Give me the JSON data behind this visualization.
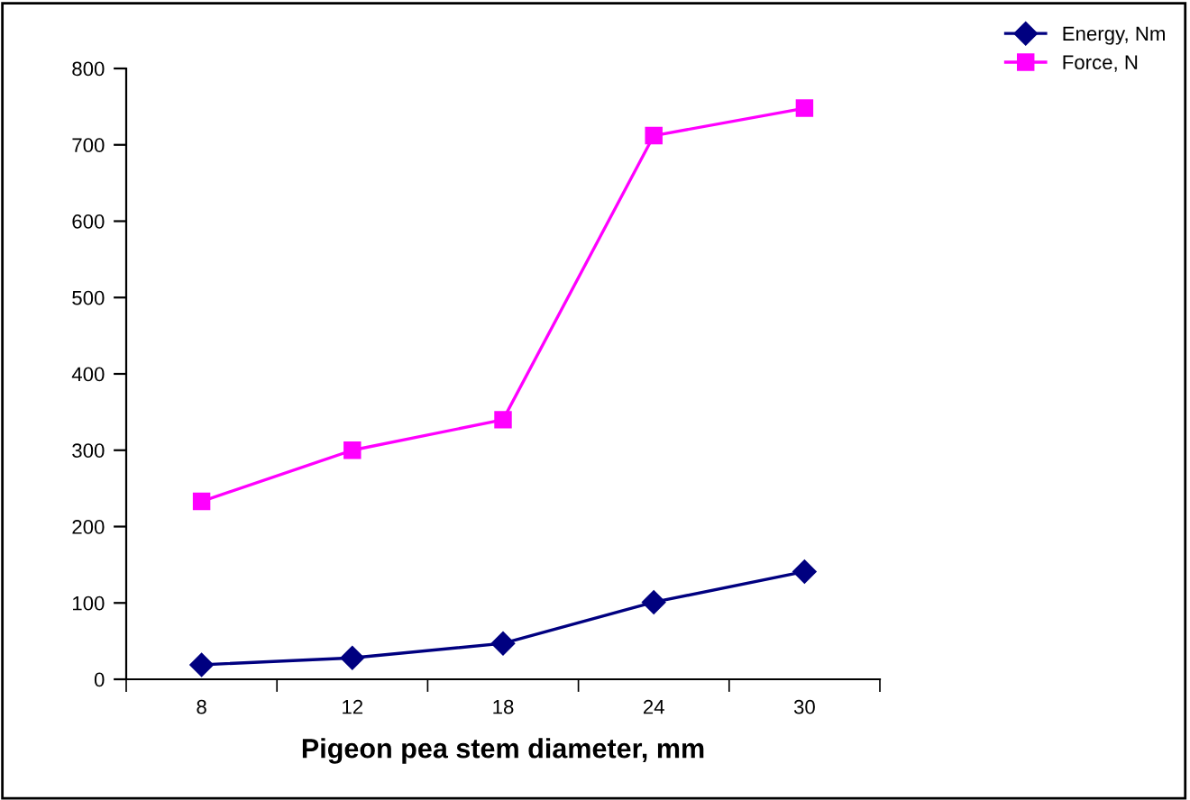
{
  "chart_data": {
    "type": "line",
    "xlabel": "Pigeon pea stem diameter, mm",
    "categories": [
      "8",
      "12",
      "18",
      "24",
      "30"
    ],
    "series": [
      {
        "name": "Energy, Nm",
        "color": "#000080",
        "marker": "diamond",
        "values": [
          19,
          28,
          47,
          101,
          141
        ]
      },
      {
        "name": "Force, N",
        "color": "#ff00ff",
        "marker": "square",
        "values": [
          233,
          300,
          340,
          712,
          748
        ]
      }
    ],
    "ylim": [
      0,
      800
    ],
    "yticks": [
      0,
      100,
      200,
      300,
      400,
      500,
      600,
      700,
      800
    ],
    "grid": false,
    "legend": "top right"
  }
}
